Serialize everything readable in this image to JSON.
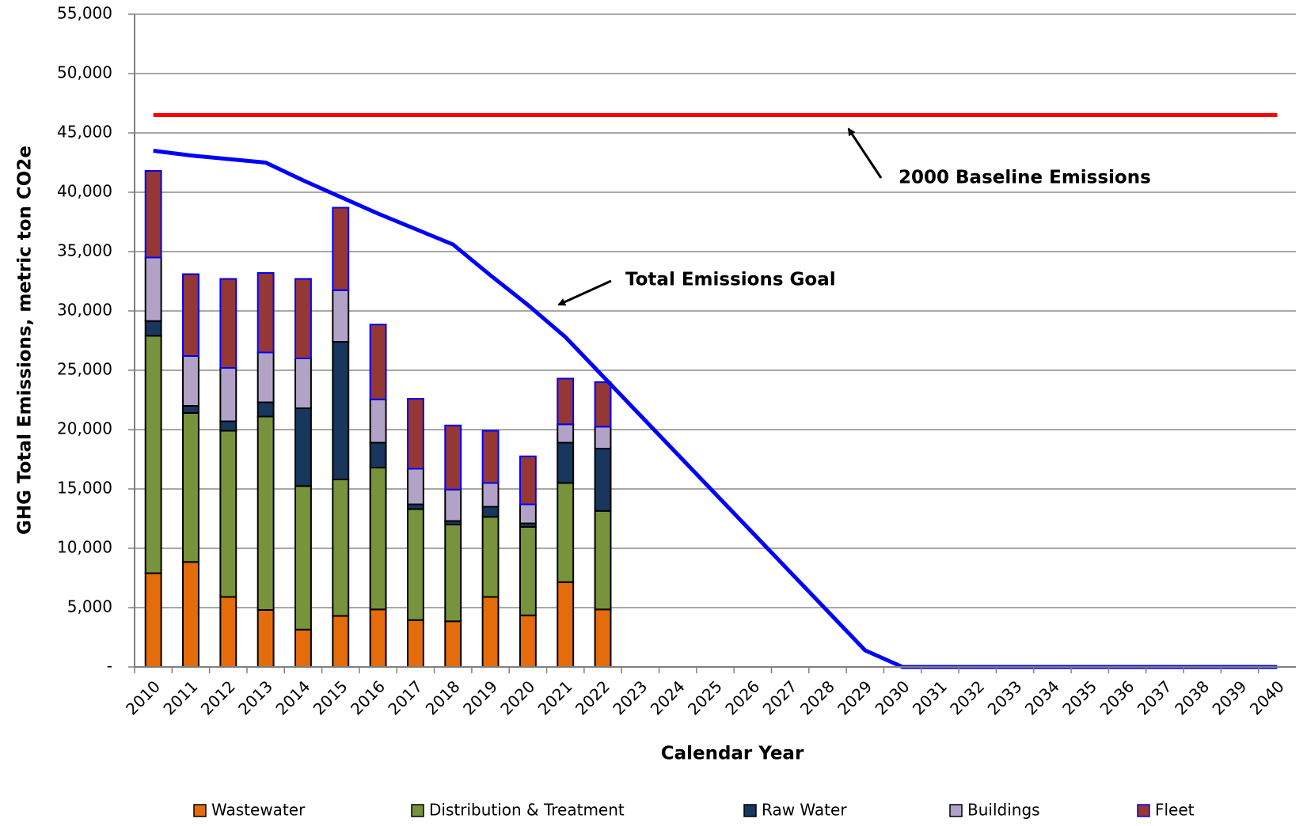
{
  "chart_data": {
    "type": "bar",
    "xlabel": "Calendar Year",
    "ylabel": "GHG Total Emissions, metric ton CO2e",
    "stacked": true,
    "grid": true,
    "legend": "bottom",
    "categories": [
      "2010",
      "2011",
      "2012",
      "2013",
      "2014",
      "2015",
      "2016",
      "2017",
      "2018",
      "2019",
      "2020",
      "2021",
      "2022",
      "2023",
      "2024",
      "2025",
      "2026",
      "2027",
      "2028",
      "2029",
      "2030",
      "2031",
      "2032",
      "2033",
      "2034",
      "2035",
      "2036",
      "2037",
      "2038",
      "2039",
      "2040"
    ],
    "series": [
      {
        "name": "Wastewater",
        "color": "#e46c0a",
        "edge": "#000000",
        "values": [
          7900,
          8850,
          5900,
          4800,
          3150,
          4300,
          4850,
          3950,
          3850,
          5900,
          4350,
          7150,
          4850,
          null,
          null,
          null,
          null,
          null,
          null,
          null,
          null,
          null,
          null,
          null,
          null,
          null,
          null,
          null,
          null,
          null,
          null
        ]
      },
      {
        "name": "Distribution & Treatment",
        "color": "#77933c",
        "edge": "#000000",
        "values": [
          20000,
          12550,
          14000,
          16300,
          12100,
          11500,
          11950,
          9350,
          8150,
          6750,
          7450,
          8350,
          8300,
          null,
          null,
          null,
          null,
          null,
          null,
          null,
          null,
          null,
          null,
          null,
          null,
          null,
          null,
          null,
          null,
          null,
          null
        ]
      },
      {
        "name": "Raw Water",
        "color": "#17375e",
        "edge": "#000000",
        "values": [
          1250,
          600,
          800,
          1200,
          6550,
          11600,
          2100,
          400,
          300,
          850,
          300,
          3400,
          5250,
          null,
          null,
          null,
          null,
          null,
          null,
          null,
          null,
          null,
          null,
          null,
          null,
          null,
          null,
          null,
          null,
          null,
          null
        ]
      },
      {
        "name": "Buildings",
        "color": "#b3a2c7",
        "edge": "#000000",
        "values": [
          5350,
          4200,
          4500,
          4200,
          4200,
          4350,
          3650,
          3000,
          2650,
          2000,
          1600,
          1550,
          1850,
          null,
          null,
          null,
          null,
          null,
          null,
          null,
          null,
          null,
          null,
          null,
          null,
          null,
          null,
          null,
          null,
          null,
          null
        ]
      },
      {
        "name": "Fleet",
        "color": "#953735",
        "edge": "#0000ff",
        "values": [
          7300,
          6900,
          7500,
          6700,
          6700,
          6950,
          6300,
          5900,
          5400,
          4400,
          4050,
          3850,
          3750,
          null,
          null,
          null,
          null,
          null,
          null,
          null,
          null,
          null,
          null,
          null,
          null,
          null,
          null,
          null,
          null,
          null,
          null
        ]
      }
    ],
    "lines": [
      {
        "name": "2000 Baseline Emissions",
        "color": "#ff0000",
        "values": [
          46500,
          46500,
          46500,
          46500,
          46500,
          46500,
          46500,
          46500,
          46500,
          46500,
          46500,
          46500,
          46500,
          46500,
          46500,
          46500,
          46500,
          46500,
          46500,
          46500,
          46500,
          46500,
          46500,
          46500,
          46500,
          46500,
          46500,
          46500,
          46500,
          46500,
          46500
        ]
      },
      {
        "name": "Total Emissions Goal",
        "color": "#0000ff",
        "values": [
          43500,
          43100,
          42800,
          42500,
          41000,
          39600,
          38200,
          36900,
          35600,
          33000,
          30500,
          27800,
          24500,
          21200,
          17900,
          14600,
          11300,
          8000,
          4700,
          1400,
          0,
          0,
          0,
          0,
          0,
          0,
          0,
          0,
          0,
          0,
          0
        ]
      }
    ],
    "ylim": [
      0,
      55000
    ],
    "yticks": [
      {
        "value": 0,
        "label": "-"
      },
      {
        "value": 5000,
        "label": "5,000"
      },
      {
        "value": 10000,
        "label": "10,000"
      },
      {
        "value": 15000,
        "label": "15,000"
      },
      {
        "value": 20000,
        "label": "20,000"
      },
      {
        "value": 25000,
        "label": "25,000"
      },
      {
        "value": 30000,
        "label": "30,000"
      },
      {
        "value": 35000,
        "label": "35,000"
      },
      {
        "value": 40000,
        "label": "40,000"
      },
      {
        "value": 45000,
        "label": "45,000"
      },
      {
        "value": 50000,
        "label": "50,000"
      },
      {
        "value": 55000,
        "label": "55,000"
      }
    ]
  }
}
